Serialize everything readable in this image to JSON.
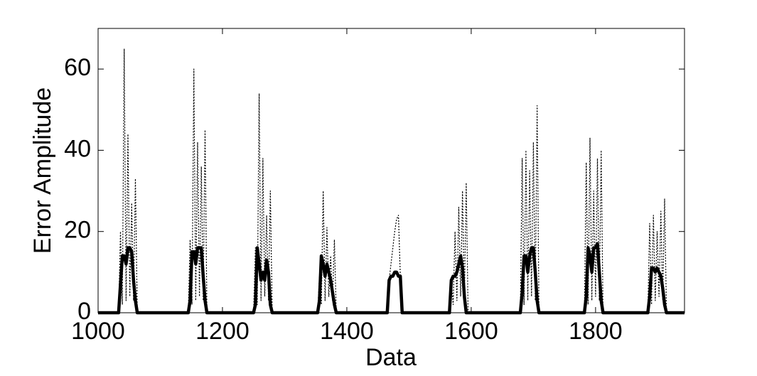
{
  "chart_data": {
    "type": "line",
    "xlabel": "Data",
    "ylabel": "Error Amplitude",
    "xlim": [
      1000,
      1943
    ],
    "xticks": [
      1000,
      1200,
      1400,
      1600,
      1800
    ],
    "ylim": [
      0,
      70
    ],
    "yticks": [
      0,
      20,
      40,
      60
    ],
    "x": [
      1000,
      1033,
      1036,
      1039,
      1042,
      1045,
      1048,
      1051,
      1054,
      1057,
      1060,
      1063,
      1145,
      1148,
      1151,
      1154,
      1157,
      1160,
      1163,
      1166,
      1169,
      1172,
      1175,
      1250,
      1253,
      1256,
      1259,
      1262,
      1265,
      1268,
      1271,
      1274,
      1277,
      1280,
      1353,
      1356,
      1359,
      1362,
      1365,
      1368,
      1371,
      1374,
      1377,
      1380,
      1383,
      1462,
      1465,
      1468,
      1471,
      1474,
      1477,
      1480,
      1483,
      1486,
      1489,
      1492,
      1565,
      1568,
      1571,
      1574,
      1577,
      1580,
      1583,
      1586,
      1589,
      1592,
      1595,
      1679,
      1682,
      1685,
      1688,
      1691,
      1694,
      1697,
      1700,
      1703,
      1706,
      1709,
      1782,
      1785,
      1788,
      1791,
      1794,
      1797,
      1800,
      1803,
      1806,
      1809,
      1812,
      1884,
      1887,
      1890,
      1893,
      1896,
      1899,
      1902,
      1905,
      1908,
      1911,
      1914,
      1943
    ],
    "series": [
      {
        "color": "#000000",
        "style": "dotted",
        "values": [
          0,
          0,
          20,
          2,
          65,
          3,
          44,
          4,
          27,
          3,
          33,
          0,
          0,
          18,
          2,
          60,
          3,
          42,
          4,
          36,
          3,
          45,
          0,
          0,
          16,
          2,
          54,
          3,
          38,
          4,
          24,
          3,
          30,
          0,
          0,
          9,
          2,
          30,
          3,
          21,
          4,
          14,
          3,
          18,
          0,
          0,
          0,
          8,
          12,
          16,
          20,
          23,
          24,
          9,
          0,
          0,
          0,
          8,
          2,
          20,
          3,
          26,
          4,
          30,
          3,
          32,
          0,
          0,
          38,
          2,
          40,
          3,
          35,
          4,
          42,
          3,
          51,
          0,
          0,
          37,
          2,
          43,
          3,
          30,
          4,
          38,
          3,
          40,
          0,
          0,
          22,
          2,
          24,
          3,
          20,
          4,
          25,
          3,
          28,
          0,
          0
        ]
      },
      {
        "color": "#000000",
        "style": "solid",
        "values": [
          0,
          0,
          7,
          14,
          14,
          12,
          16,
          16,
          15,
          8,
          3,
          0,
          0,
          3,
          15,
          15,
          12,
          16,
          16,
          16,
          9,
          3,
          0,
          0,
          2,
          16,
          12,
          8,
          10,
          8,
          13,
          10,
          2,
          0,
          0,
          3,
          14,
          12,
          9,
          12,
          10,
          8,
          5,
          2,
          0,
          0,
          0,
          8,
          9,
          9,
          10,
          10,
          9,
          9,
          0,
          0,
          0,
          8,
          9,
          9,
          10,
          12,
          14,
          11,
          4,
          0,
          0,
          0,
          5,
          14,
          14,
          10,
          14,
          16,
          16,
          10,
          3,
          0,
          0,
          4,
          16,
          14,
          10,
          16,
          16,
          17,
          10,
          3,
          0,
          0,
          4,
          11,
          11,
          10,
          11,
          10,
          9,
          6,
          2,
          0,
          0
        ]
      }
    ]
  }
}
